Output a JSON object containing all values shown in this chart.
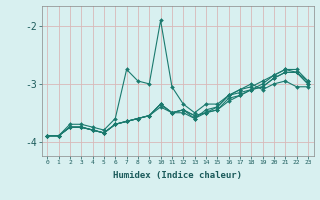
{
  "xlabel": "Humidex (Indice chaleur)",
  "ylabel": "",
  "background_color": "#d8f0f0",
  "grid_color": "#d8b8b8",
  "line_color": "#1a7a6e",
  "xlim": [
    -0.5,
    23.5
  ],
  "ylim": [
    -4.25,
    -1.65
  ],
  "yticks": [
    -4,
    -3,
    -2
  ],
  "xticks": [
    0,
    1,
    2,
    3,
    4,
    5,
    6,
    7,
    8,
    9,
    10,
    11,
    12,
    13,
    14,
    15,
    16,
    17,
    18,
    19,
    20,
    21,
    22,
    23
  ],
  "series": [
    [
      0,
      1,
      2,
      3,
      4,
      5,
      6,
      7,
      8,
      9,
      10,
      11,
      12,
      13,
      14,
      15,
      16,
      17,
      18,
      19,
      20,
      21,
      22,
      23
    ],
    [
      -3.9,
      -3.9,
      -3.7,
      -3.7,
      -3.75,
      -3.8,
      -3.6,
      -2.75,
      -2.95,
      -3.0,
      -1.9,
      -3.05,
      -3.35,
      -3.5,
      -3.35,
      -3.35,
      -3.2,
      -3.1,
      -3.0,
      -3.1,
      -3.0,
      -2.95,
      -3.05,
      -3.05
    ],
    [
      -3.9,
      -3.9,
      -3.75,
      -3.75,
      -3.8,
      -3.85,
      -3.7,
      -3.65,
      -3.6,
      -3.55,
      -3.4,
      -3.5,
      -3.45,
      -3.55,
      -3.5,
      -3.45,
      -3.25,
      -3.2,
      -3.1,
      -3.05,
      -2.9,
      -2.8,
      -2.8,
      -3.0
    ],
    [
      -3.9,
      -3.9,
      -3.75,
      -3.75,
      -3.8,
      -3.85,
      -3.7,
      -3.65,
      -3.6,
      -3.55,
      -3.35,
      -3.5,
      -3.45,
      -3.6,
      -3.45,
      -3.4,
      -3.2,
      -3.15,
      -3.1,
      -3.0,
      -2.85,
      -2.75,
      -2.75,
      -2.95
    ],
    [
      -3.9,
      -3.9,
      -3.75,
      -3.75,
      -3.8,
      -3.85,
      -3.7,
      -3.65,
      -3.6,
      -3.55,
      -3.35,
      -3.5,
      -3.5,
      -3.6,
      -3.5,
      -3.45,
      -3.3,
      -3.2,
      -3.1,
      -3.05,
      -2.9,
      -2.8,
      -2.8,
      -3.0
    ],
    [
      -3.9,
      -3.9,
      -3.75,
      -3.75,
      -3.8,
      -3.85,
      -3.7,
      -3.65,
      -3.6,
      -3.55,
      -3.35,
      -3.5,
      -3.45,
      -3.55,
      -3.5,
      -3.4,
      -3.2,
      -3.1,
      -3.05,
      -2.95,
      -2.85,
      -2.75,
      -2.8,
      -2.95
    ]
  ]
}
